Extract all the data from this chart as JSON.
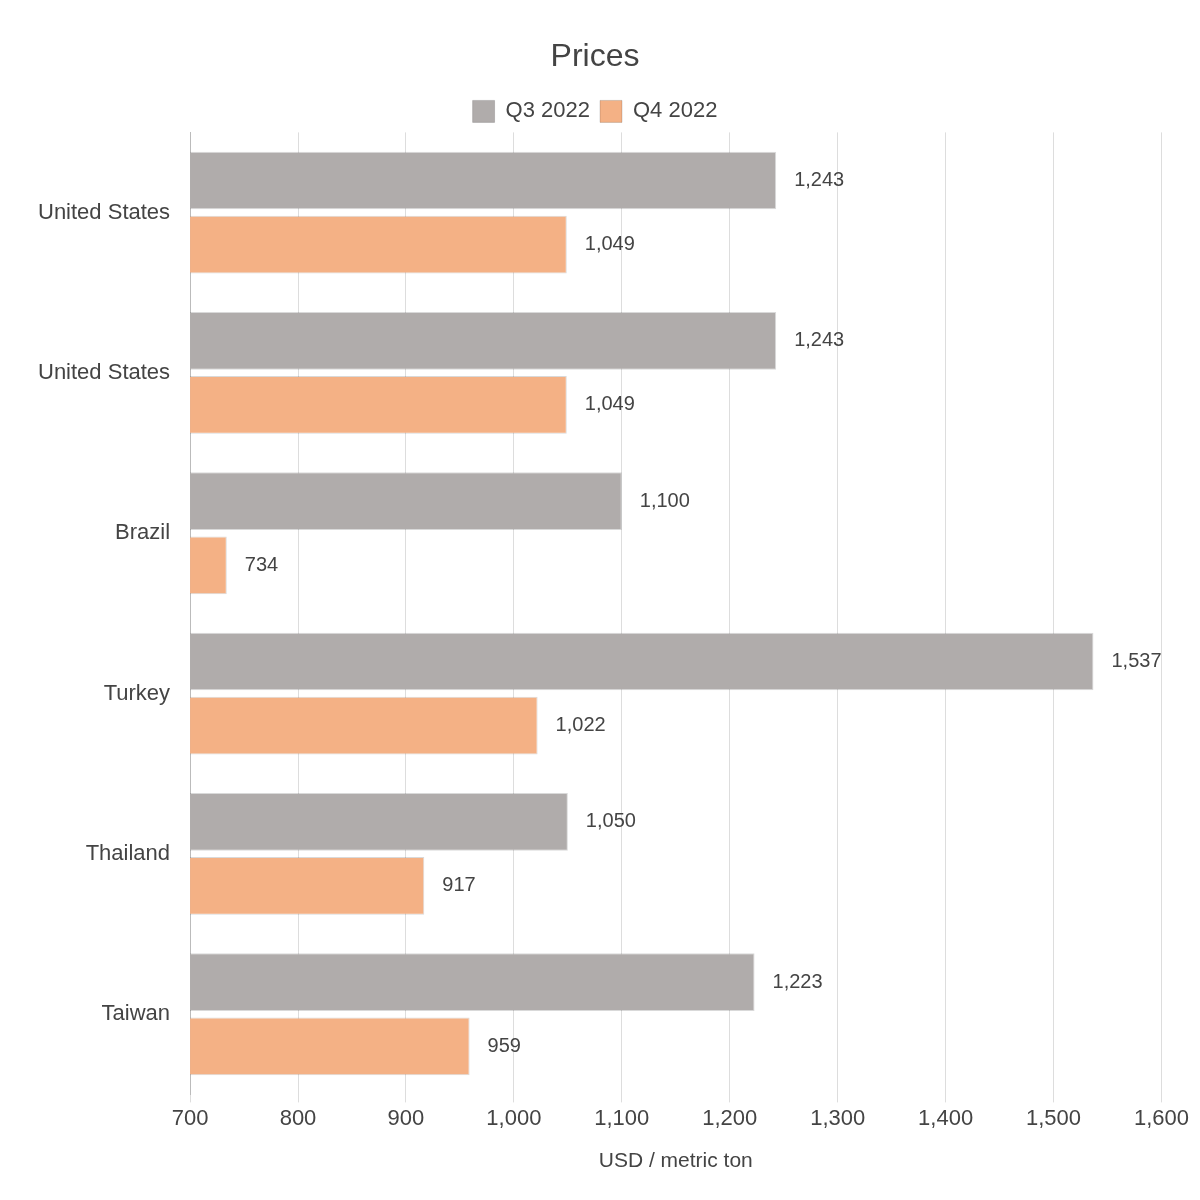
{
  "chart_data": {
    "type": "bar",
    "orientation": "horizontal",
    "title": "Prices",
    "xlabel": "USD / metric ton",
    "categories": [
      "United States",
      "United States",
      "Brazil",
      "Turkey",
      "Thailand",
      "Taiwan"
    ],
    "series": [
      {
        "name": "Q3 2022",
        "color": "#b0acab",
        "values": [
          1243,
          1243,
          1100,
          1537,
          1050,
          1223
        ],
        "value_labels": [
          "1,243",
          "1,243",
          "1,100",
          "1,537",
          "1,050",
          "1,223"
        ]
      },
      {
        "name": "Q4 2022",
        "color": "#f4b185",
        "values": [
          1049,
          1049,
          734,
          1022,
          917,
          959
        ],
        "value_labels": [
          "1,049",
          "1,049",
          "734",
          "1,022",
          "917",
          "959"
        ]
      }
    ],
    "xlim": [
      700,
      1600
    ],
    "xticks": [
      700,
      800,
      900,
      {
        "value": 1000,
        "label": "1,000"
      },
      {
        "value": 1100,
        "label": "1,100"
      },
      {
        "value": 1200,
        "label": "1,200"
      },
      {
        "value": 1300,
        "label": "1,300"
      },
      {
        "value": 1400,
        "label": "1,400"
      },
      {
        "value": 1500,
        "label": "1,500"
      },
      {
        "value": 1600,
        "label": "1,600"
      }
    ],
    "grid": "x",
    "legend": "top"
  }
}
